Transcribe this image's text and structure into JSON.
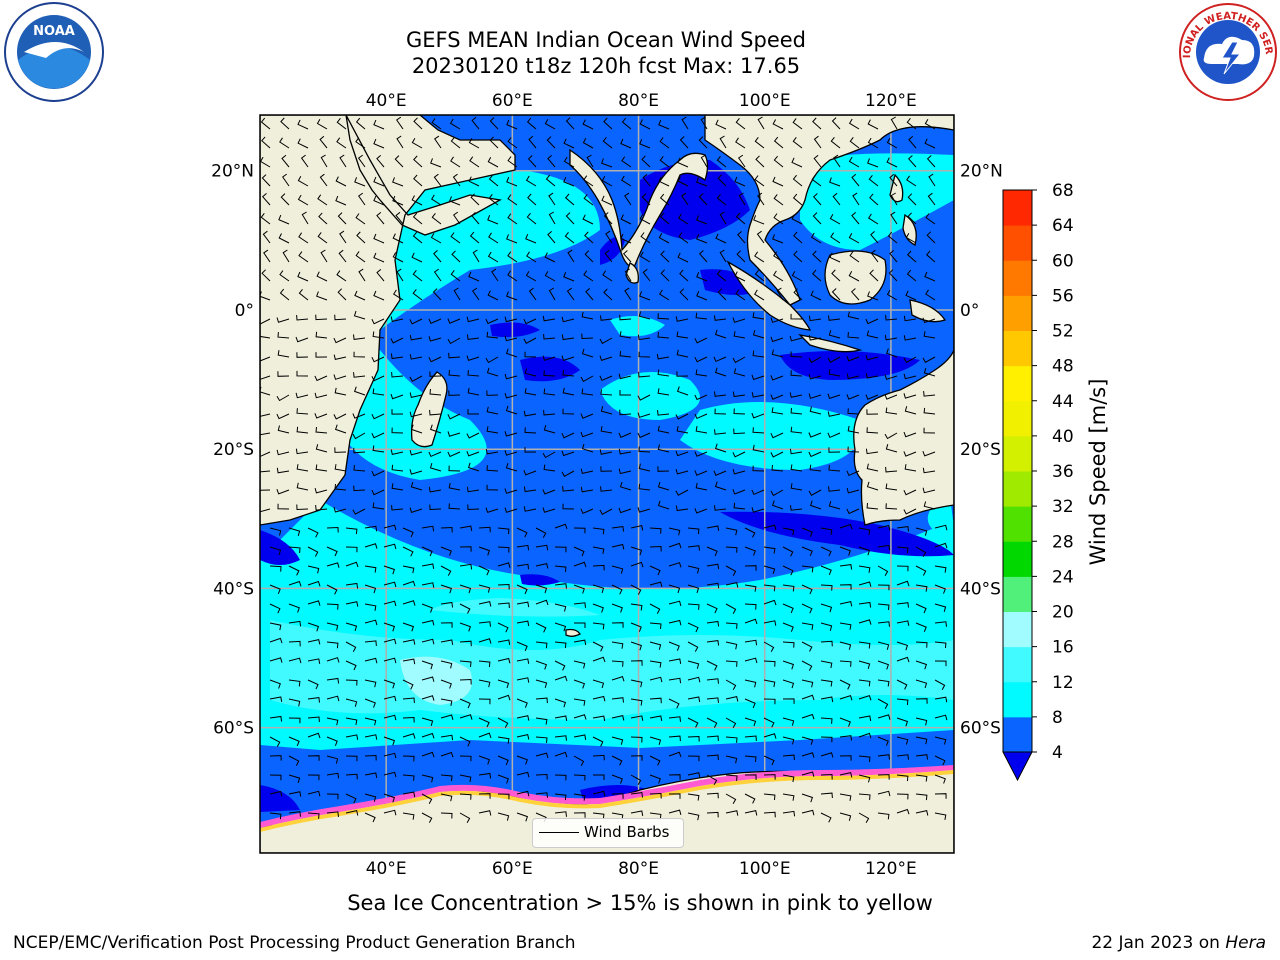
{
  "title_line1": "GEFS MEAN Indian Ocean Wind Speed",
  "title_line2": "20230120 t18z 120h fcst   Max: 17.65",
  "map": {
    "lon_min": 20,
    "lon_max": 130,
    "lat_min": -78,
    "lat_max": 28,
    "lon_ticks": [
      40,
      60,
      80,
      100,
      120
    ],
    "lon_tick_labels": [
      "40°E",
      "60°E",
      "80°E",
      "100°E",
      "120°E"
    ],
    "lat_ticks": [
      20,
      0,
      -20,
      -40,
      -60
    ],
    "lat_tick_labels": [
      "20°N",
      "0°",
      "20°S",
      "40°S",
      "60°S"
    ],
    "grid": true,
    "land_color": "#efefdb",
    "coastline_color": "#000000"
  },
  "colorbar": {
    "label": "Wind Speed [m/s]",
    "levels": [
      4,
      8,
      12,
      16,
      20,
      24,
      28,
      32,
      36,
      40,
      44,
      48,
      52,
      56,
      60,
      64,
      68
    ],
    "colors": [
      "#0a64ff",
      "#00faff",
      "#40faff",
      "#a0fcff",
      "#50f07a",
      "#00d800",
      "#50e100",
      "#a0ea00",
      "#d2f000",
      "#f0f000",
      "#fff000",
      "#ffc800",
      "#ffa000",
      "#ff7800",
      "#ff5000",
      "#ff2800"
    ],
    "under_color": "#0000ee",
    "extend": "min"
  },
  "legend_label": "Wind Barbs",
  "note": "Sea Ice Concentration > 15% is shown in pink to yellow",
  "footer_left": "NCEP/EMC/Verification Post Processing Product Generation Branch",
  "footer_date": "22 Jan 2023 on ",
  "footer_host": "Hera",
  "logos": {
    "noaa_text": "NOAA",
    "nws_text": "NATIONAL WEATHER SERVICE"
  }
}
